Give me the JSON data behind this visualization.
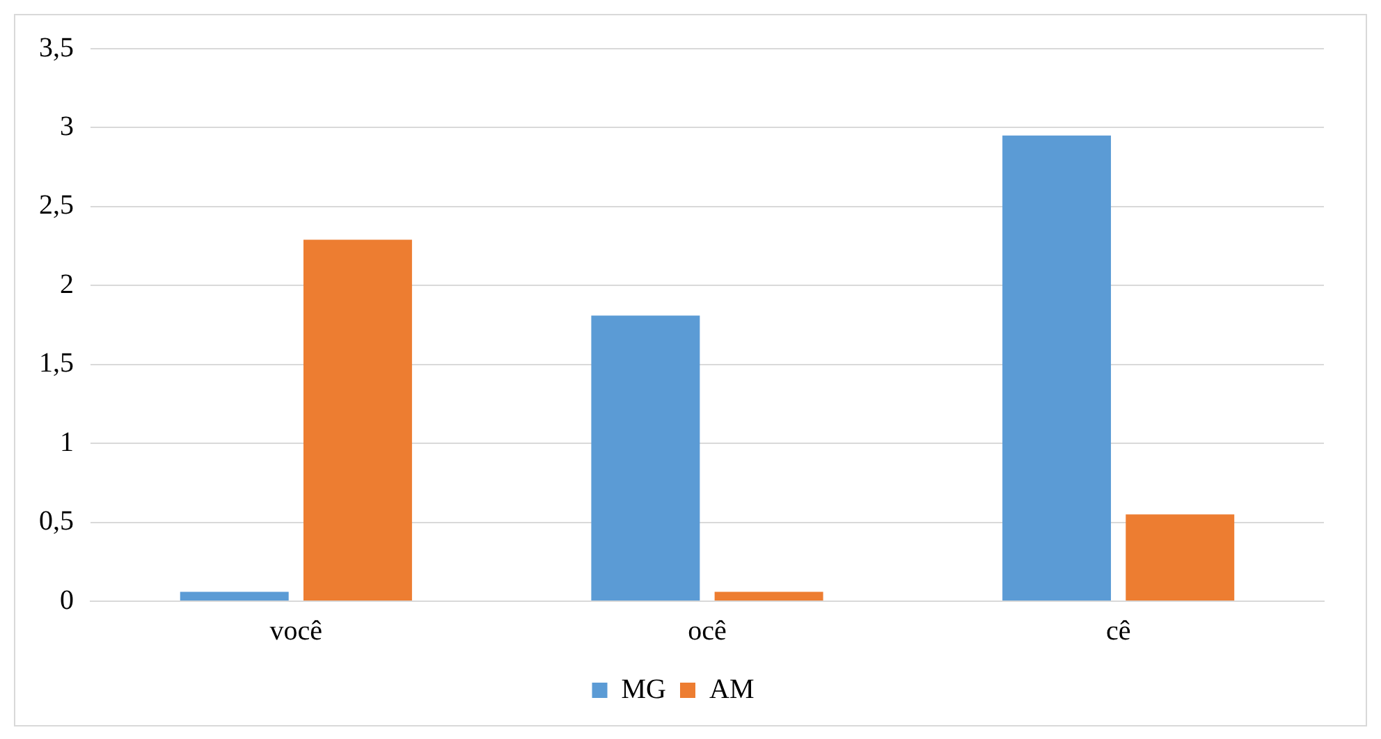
{
  "chart_data": {
    "type": "bar",
    "categories": [
      "você",
      "ocê",
      "cê"
    ],
    "series": [
      {
        "name": "MG",
        "color": "#5b9bd5",
        "values": [
          0.06,
          1.81,
          2.95
        ]
      },
      {
        "name": "AM",
        "color": "#ed7d31",
        "values": [
          2.29,
          0.06,
          0.55
        ]
      }
    ],
    "ylim": [
      0,
      3.5
    ],
    "yticks": [
      0,
      {
        "value": 0.5,
        "label": "0,5"
      },
      1,
      {
        "value": 1.5,
        "label": "1,5"
      },
      2,
      {
        "value": 2.5,
        "label": "2,5"
      },
      3,
      {
        "value": 3.5,
        "label": "3,5"
      }
    ],
    "grid": "y",
    "legend": "bottom"
  }
}
